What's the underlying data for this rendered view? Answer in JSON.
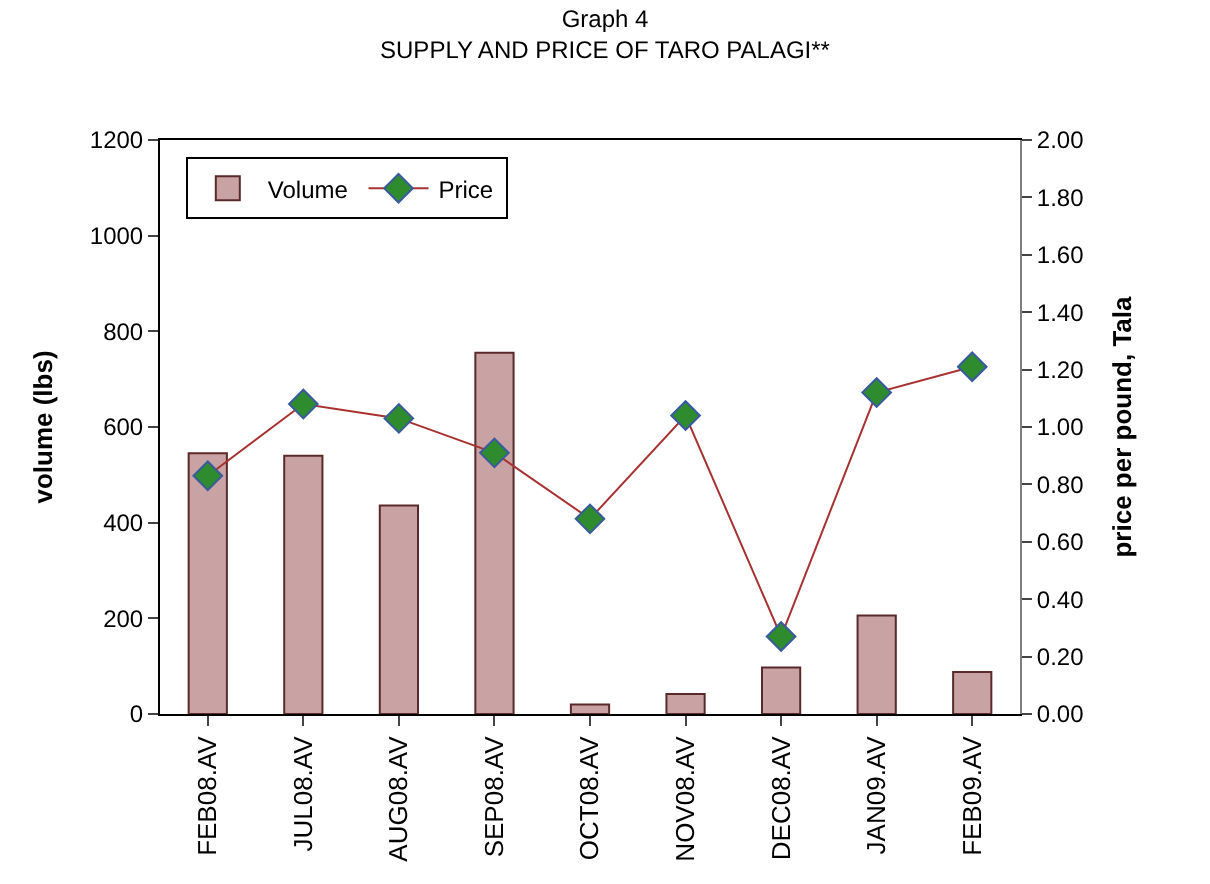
{
  "chart_data": {
    "type": "bar",
    "title": "Graph 4",
    "subtitle": "SUPPLY AND PRICE OF TARO PALAGI**",
    "ylabel": "volume (lbs)",
    "y2label": "price per pound, Tala",
    "categories": [
      "FEB08.AV",
      "JUL08.AV",
      "AUG08.AV",
      "SEP08.AV",
      "OCT08.AV",
      "NOV08.AV",
      "DEC08.AV",
      "JAN09.AV",
      "FEB09.AV"
    ],
    "series": [
      {
        "name": "Volume",
        "color": "#c9a3a3",
        "values": [
          545,
          540,
          436,
          755,
          20,
          42,
          97,
          206,
          88
        ]
      },
      {
        "name": "Price",
        "type": "line",
        "axis": "y2",
        "color": "#a83232",
        "marker": "diamond",
        "values": [
          0.83,
          1.08,
          1.03,
          0.91,
          0.68,
          1.04,
          0.27,
          1.12,
          1.21
        ]
      }
    ],
    "ylim": [
      0,
      1200
    ],
    "yticks": [
      0,
      200,
      400,
      600,
      800,
      1000,
      1200
    ],
    "y2lim": [
      0,
      2
    ],
    "y2ticks": [
      {
        "value": 0,
        "label": "0.00"
      },
      {
        "value": 0.2,
        "label": "0.20"
      },
      {
        "value": 0.4,
        "label": "0.40"
      },
      {
        "value": 0.6,
        "label": "0.60"
      },
      {
        "value": 0.8,
        "label": "0.80"
      },
      {
        "value": 1,
        "label": "1.00"
      },
      {
        "value": 1.2,
        "label": "1.20"
      },
      {
        "value": 1.4,
        "label": "1.40"
      },
      {
        "value": 1.6,
        "label": "1.60"
      },
      {
        "value": 1.8,
        "label": "1.80"
      },
      {
        "value": 2,
        "label": "2.00"
      }
    ],
    "legend": "top left"
  }
}
